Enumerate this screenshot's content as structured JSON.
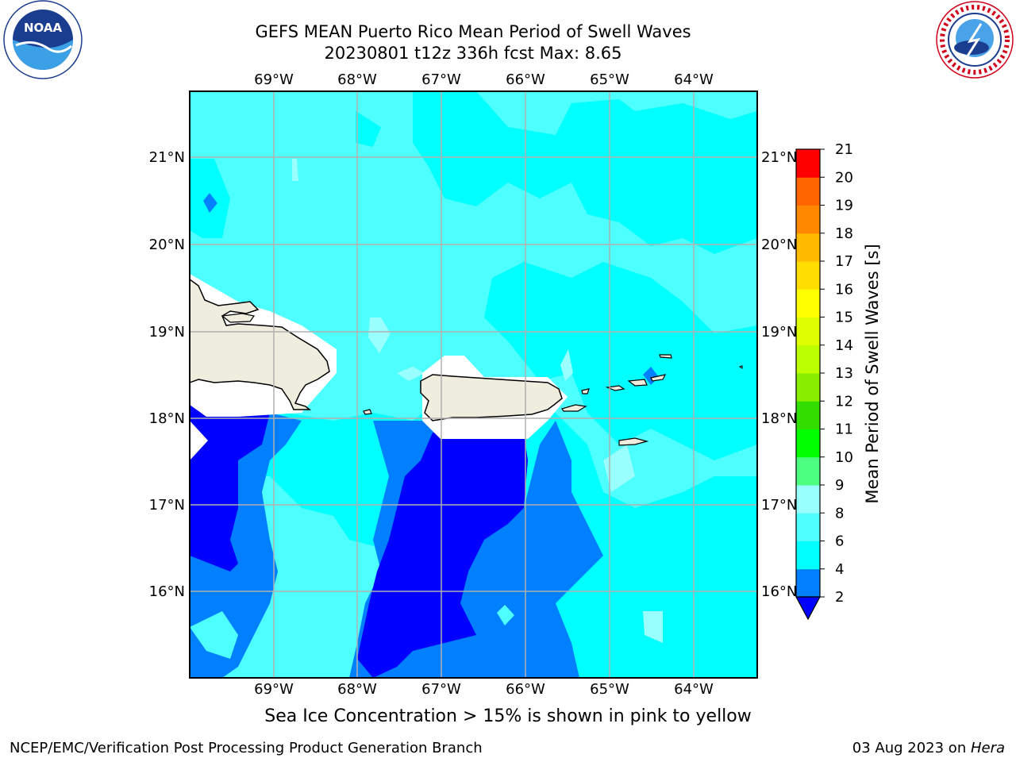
{
  "header": {
    "title_line1": "GEFS MEAN Puerto Rico Mean Period of Swell Waves",
    "title_line2": "20230801 t12z 336h fcst   Max: 8.65"
  },
  "logos": {
    "noaa": {
      "text": "NOAA",
      "ring_text": "NATIONAL OCEANIC AND ATMOSPHERIC ADMINISTRATION · U.S. DEPARTMENT OF COMMERCE"
    },
    "nws": {
      "ring_text": "NATIONAL WEATHER SERVICE"
    }
  },
  "map": {
    "lon_labels": [
      "69°W",
      "68°W",
      "67°W",
      "66°W",
      "65°W",
      "64°W"
    ],
    "lat_labels": [
      "21°N",
      "20°N",
      "19°N",
      "18°N",
      "17°N",
      "16°N"
    ],
    "colors": {
      "ocean_light": "#4dffff",
      "ocean_cyan": "#00ffff",
      "ocean_pale": "#99ffff",
      "ocean_blue": "#0080ff",
      "ocean_dark": "#0000ff",
      "land": "#efedde",
      "grid": "#b0b0b0"
    }
  },
  "colorbar": {
    "label": "Mean Period of Swell Waves [s]",
    "ticks": [
      "2",
      "4",
      "6",
      "8",
      "9",
      "10",
      "11",
      "12",
      "13",
      "14",
      "15",
      "16",
      "17",
      "18",
      "19",
      "20",
      "21"
    ],
    "colors": [
      "#0080ff",
      "#00ffff",
      "#4dffff",
      "#99ffff",
      "#4dff80",
      "#00ff00",
      "#33dd00",
      "#88ee00",
      "#bbff00",
      "#ddff00",
      "#ffff00",
      "#ffdd00",
      "#ffbb00",
      "#ff8800",
      "#ff6600",
      "#ff3300"
    ],
    "extend_color": "#0000ff",
    "top_color": "#ff0000"
  },
  "footer": {
    "note": "Sea Ice Concentration > 15% is shown in pink to yellow",
    "credit": "NCEP/EMC/Verification Post Processing Product Generation Branch",
    "date": "03 Aug 2023 on ",
    "machine": "Hera"
  }
}
